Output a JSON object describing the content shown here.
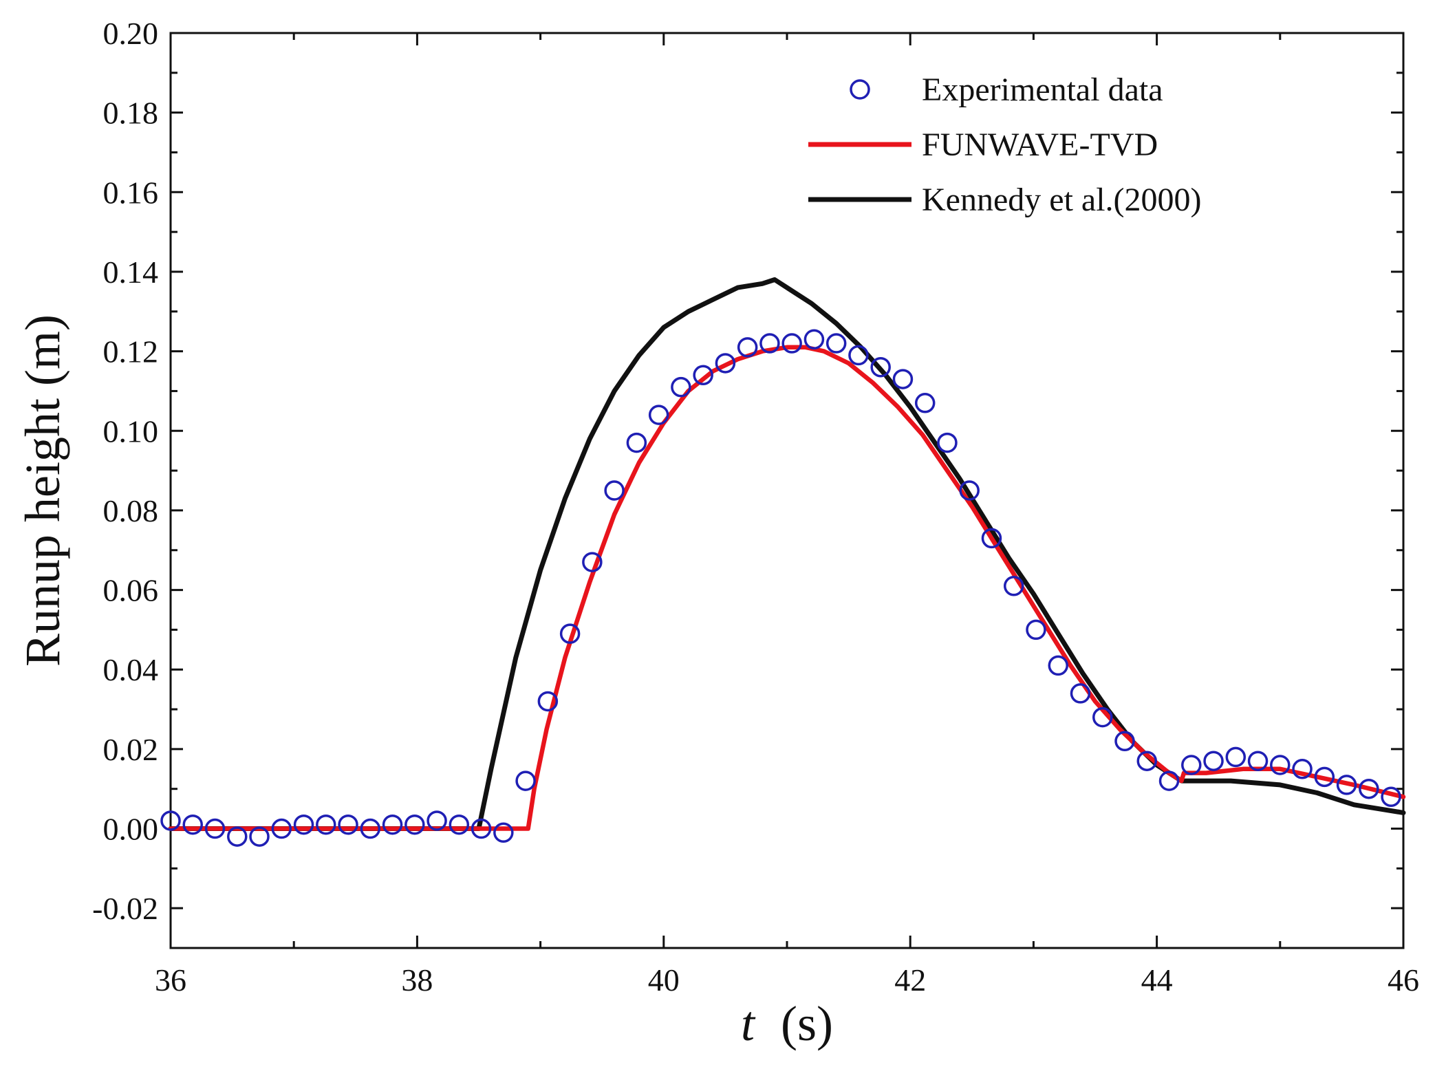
{
  "chart_data": {
    "type": "line",
    "title": "",
    "xlabel": "t",
    "xlabel_unit": "(s)",
    "ylabel": "Runup height (m)",
    "xlim": [
      36,
      46
    ],
    "ylim": [
      -0.03,
      0.2
    ],
    "x_ticks": [
      36,
      38,
      40,
      42,
      44,
      46
    ],
    "x_tick_labels": [
      "36",
      "38",
      "40",
      "42",
      "44",
      "46"
    ],
    "y_ticks": [
      -0.02,
      0.0,
      0.02,
      0.04,
      0.06,
      0.08,
      0.1,
      0.12,
      0.14,
      0.16,
      0.18,
      0.2
    ],
    "y_tick_labels": [
      "-0.02",
      "0.00",
      "0.02",
      "0.04",
      "0.06",
      "0.08",
      "0.10",
      "0.12",
      "0.14",
      "0.16",
      "0.18",
      "0.20"
    ],
    "grid": false,
    "legend_position": "top-right",
    "series": [
      {
        "name": "Experimental data",
        "style": "markers",
        "marker": "open-circle",
        "color": "#1f1fb4",
        "x": [
          36.0,
          36.18,
          36.36,
          36.54,
          36.72,
          36.9,
          37.08,
          37.26,
          37.44,
          37.62,
          37.8,
          37.98,
          38.16,
          38.34,
          38.52,
          38.7,
          38.88,
          39.06,
          39.24,
          39.42,
          39.6,
          39.78,
          39.96,
          40.14,
          40.32,
          40.5,
          40.68,
          40.86,
          41.04,
          41.22,
          41.4,
          41.58,
          41.76,
          41.94,
          42.12,
          42.3,
          42.48,
          42.66,
          42.84,
          43.02,
          43.2,
          43.38,
          43.56,
          43.74,
          43.92,
          44.1,
          44.28,
          44.46,
          44.64,
          44.82,
          45.0,
          45.18,
          45.36,
          45.54,
          45.72,
          45.9
        ],
        "y": [
          0.002,
          0.001,
          0.0,
          -0.002,
          -0.002,
          0.0,
          0.001,
          0.001,
          0.001,
          0.0,
          0.001,
          0.001,
          0.002,
          0.001,
          0.0,
          -0.001,
          0.012,
          0.032,
          0.049,
          0.067,
          0.085,
          0.097,
          0.104,
          0.111,
          0.114,
          0.117,
          0.121,
          0.122,
          0.122,
          0.123,
          0.122,
          0.119,
          0.116,
          0.113,
          0.107,
          0.097,
          0.085,
          0.073,
          0.061,
          0.05,
          0.041,
          0.034,
          0.028,
          0.022,
          0.017,
          0.012,
          0.016,
          0.017,
          0.018,
          0.017,
          0.016,
          0.015,
          0.013,
          0.011,
          0.01,
          0.008
        ]
      },
      {
        "name": "FUNWAVE-TVD",
        "style": "line",
        "color": "#e8141c",
        "x": [
          36.0,
          38.9,
          38.95,
          39.05,
          39.2,
          39.4,
          39.6,
          39.8,
          40.0,
          40.2,
          40.4,
          40.6,
          40.8,
          41.0,
          41.15,
          41.3,
          41.5,
          41.7,
          41.9,
          42.1,
          42.3,
          42.5,
          42.7,
          42.9,
          43.1,
          43.3,
          43.5,
          43.7,
          43.9,
          44.1,
          44.2,
          44.22,
          44.4,
          44.7,
          45.0,
          45.3,
          45.6,
          46.0
        ],
        "y": [
          0.0,
          0.0,
          0.01,
          0.025,
          0.043,
          0.062,
          0.079,
          0.092,
          0.102,
          0.11,
          0.115,
          0.118,
          0.12,
          0.121,
          0.121,
          0.12,
          0.117,
          0.112,
          0.106,
          0.099,
          0.09,
          0.081,
          0.071,
          0.061,
          0.051,
          0.041,
          0.032,
          0.025,
          0.019,
          0.014,
          0.012,
          0.014,
          0.014,
          0.015,
          0.015,
          0.013,
          0.011,
          0.008
        ]
      },
      {
        "name": "Kennedy et al.(2000)",
        "style": "line",
        "color": "#111111",
        "x": [
          36.0,
          38.5,
          38.6,
          38.8,
          39.0,
          39.2,
          39.4,
          39.6,
          39.8,
          40.0,
          40.2,
          40.4,
          40.6,
          40.8,
          40.9,
          41.0,
          41.2,
          41.4,
          41.6,
          41.8,
          42.0,
          42.2,
          42.4,
          42.6,
          42.8,
          43.0,
          43.2,
          43.4,
          43.6,
          43.8,
          44.0,
          44.2,
          44.3,
          44.6,
          45.0,
          45.3,
          45.6,
          46.0
        ],
        "y": [
          0.0,
          0.0,
          0.015,
          0.043,
          0.065,
          0.083,
          0.098,
          0.11,
          0.119,
          0.126,
          0.13,
          0.133,
          0.136,
          0.137,
          0.138,
          0.136,
          0.132,
          0.127,
          0.121,
          0.114,
          0.106,
          0.097,
          0.088,
          0.078,
          0.068,
          0.059,
          0.049,
          0.039,
          0.03,
          0.022,
          0.016,
          0.012,
          0.012,
          0.012,
          0.011,
          0.009,
          0.006,
          0.004
        ]
      }
    ]
  }
}
